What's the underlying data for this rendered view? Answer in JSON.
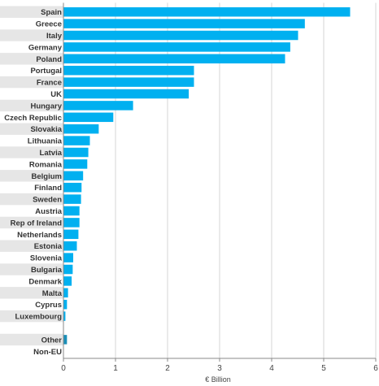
{
  "chart_data": {
    "type": "bar",
    "orientation": "horizontal",
    "categories": [
      "Spain",
      "Greece",
      "Italy",
      "Germany",
      "Poland",
      "Portugal",
      "France",
      "UK",
      "Hungary",
      "Czech Republic",
      "Slovakia",
      "Lithuania",
      "Latvia",
      "Romania",
      "Belgium",
      "Finland",
      "Sweden",
      "Austria",
      "Rep of Ireland",
      "Netherlands",
      "Estonia",
      "Slovenia",
      "Bulgaria",
      "Denmark",
      "Malta",
      "Cyprus",
      "Luxembourg",
      "",
      "Other",
      "Non-EU"
    ],
    "values": [
      5.5,
      4.63,
      4.5,
      4.35,
      4.25,
      2.5,
      2.5,
      2.4,
      1.33,
      0.95,
      0.67,
      0.5,
      0.47,
      0.45,
      0.37,
      0.34,
      0.33,
      0.3,
      0.3,
      0.28,
      0.25,
      0.18,
      0.17,
      0.15,
      0.08,
      0.06,
      0.03,
      null,
      0.06,
      0
    ],
    "xlabel": "€ Billion",
    "ylabel": "",
    "xlim": [
      0,
      6
    ],
    "xticks": [
      0,
      1,
      2,
      3,
      4,
      5,
      6
    ],
    "grid": true,
    "colors": {
      "bar": "#00b0f0",
      "bar_other": "#1a8fb8",
      "row_band": "#e6e6e6",
      "grid": "#d4d4d4",
      "axis": "#888888"
    }
  }
}
